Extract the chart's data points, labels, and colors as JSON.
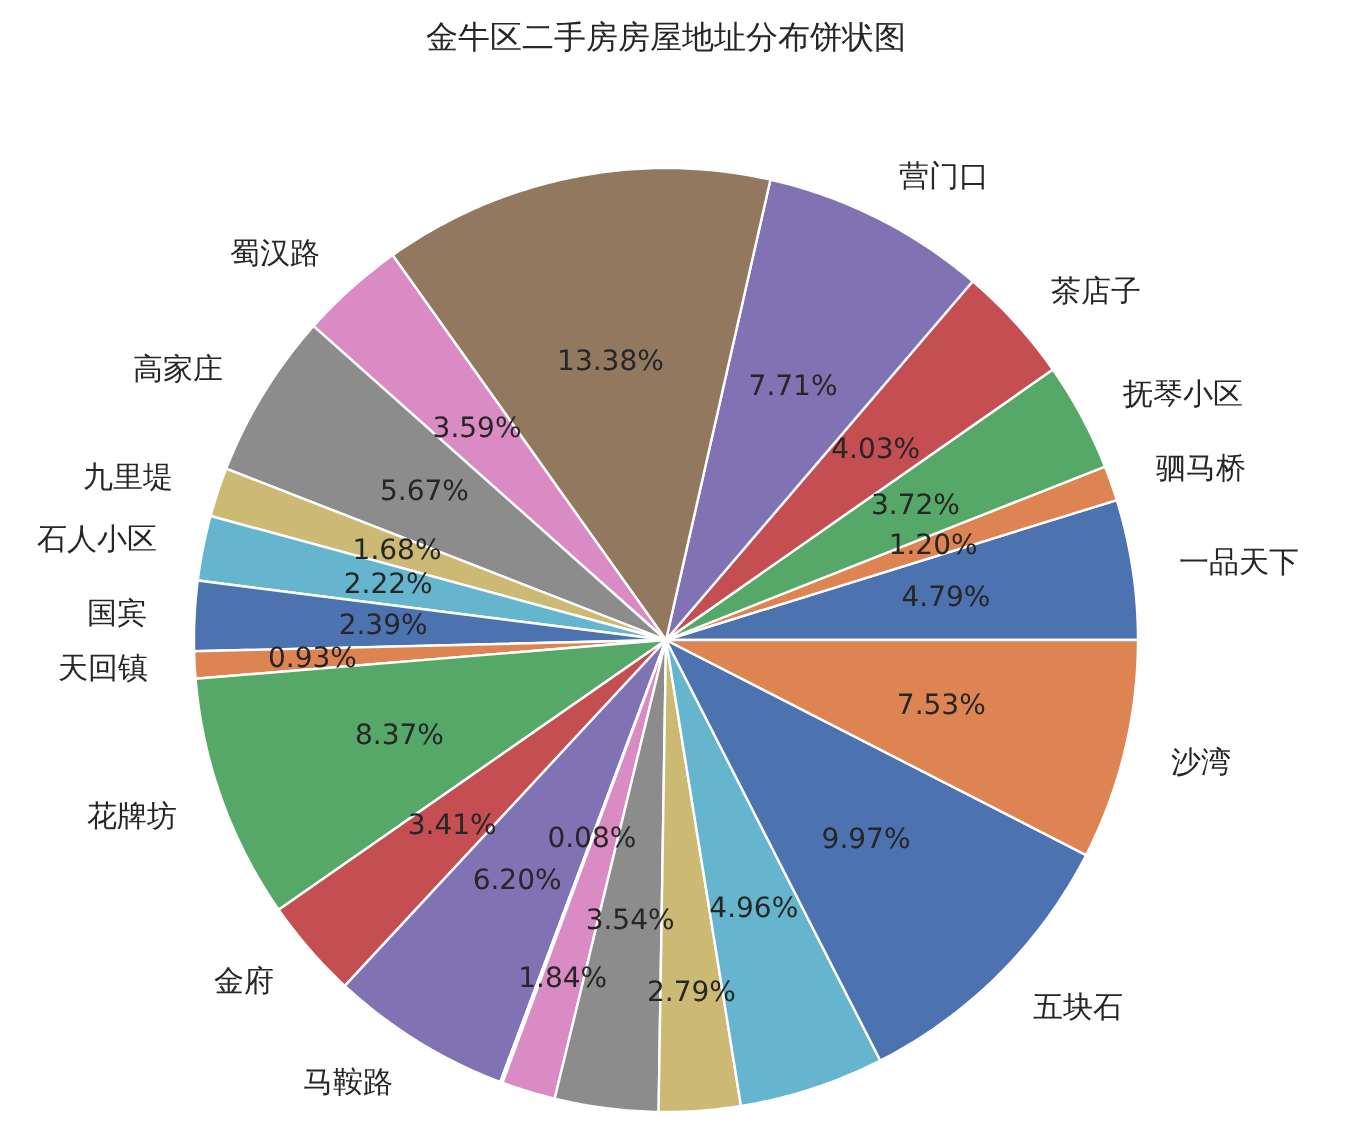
{
  "chart_data": {
    "type": "pie",
    "title": "金牛区二手房房屋地址分布饼状图",
    "categories": [
      "一品天下",
      "驷马桥",
      "抚琴小区",
      "茶店子",
      "营门口",
      null,
      "蜀汉路",
      "高家庄",
      "九里堤",
      "石人小区",
      "国宾",
      "天回镇",
      "花牌坊",
      "金府",
      "马鞍路",
      null,
      null,
      null,
      null,
      null,
      "五块石",
      "沙湾"
    ],
    "values": [
      4.79,
      1.2,
      3.72,
      4.03,
      7.71,
      13.38,
      3.59,
      5.67,
      1.68,
      2.22,
      2.39,
      0.93,
      8.37,
      3.41,
      6.2,
      0.08,
      1.84,
      3.54,
      2.79,
      4.96,
      9.97,
      7.53
    ],
    "colors": [
      "#4c72b0",
      "#dd8452",
      "#55a868",
      "#c44e52",
      "#8172b3",
      "#937860",
      "#da8bc3",
      "#8c8c8c",
      "#ccb974",
      "#64b5cd",
      "#4c72b0",
      "#dd8452",
      "#55a868",
      "#c44e52",
      "#8172b3",
      "#937860",
      "#da8bc3",
      "#8c8c8c",
      "#ccb974",
      "#64b5cd",
      "#4c72b0",
      "#dd8452"
    ],
    "value_labels": [
      "4.79%",
      "1.20%",
      "3.72%",
      "4.03%",
      "7.71%",
      "13.38%",
      "3.59%",
      "5.67%",
      "1.68%",
      "2.22%",
      "2.39%",
      "0.93%",
      "8.37%",
      "3.41%",
      "6.20%",
      "0.08%",
      "1.84%",
      "3.54%",
      "2.79%",
      "4.96%",
      "9.97%",
      "7.53%"
    ]
  }
}
